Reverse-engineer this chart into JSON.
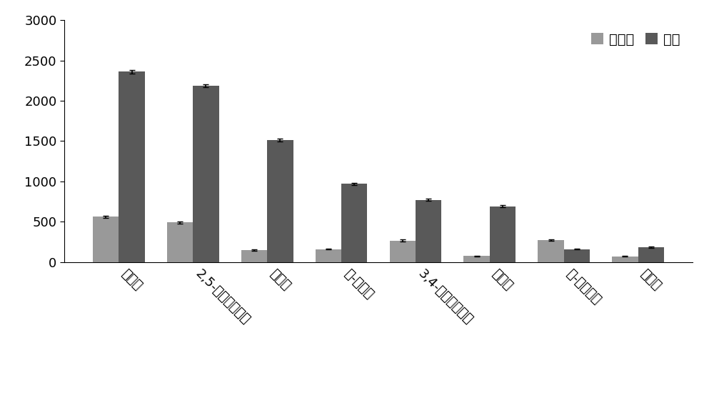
{
  "categories": [
    "隔马酸",
    "2,5-二羟基苯甲酸",
    "芥子酸",
    "反-阿魏酸",
    "3,4-二羟基苯甲酸",
    "咋啊酸",
    "反-对香豆酸",
    "香草酸"
  ],
  "values_no_ammonium": [
    560,
    490,
    150,
    160,
    265,
    75,
    270,
    70
  ],
  "values_ammonium": [
    2360,
    2190,
    1510,
    970,
    770,
    690,
    160,
    180
  ],
  "error_no_ammonium": [
    10,
    15,
    8,
    8,
    12,
    5,
    10,
    5
  ],
  "error_ammonium": [
    20,
    18,
    18,
    12,
    12,
    12,
    8,
    8
  ],
  "color_no_ammonium": "#999999",
  "color_ammonium": "#595959",
  "legend_no_ammonium": "不加铵",
  "legend_ammonium": "加铵",
  "ylim": [
    0,
    3000
  ],
  "yticks": [
    0,
    500,
    1000,
    1500,
    2000,
    2500,
    3000
  ],
  "bar_width": 0.35,
  "background_color": "#ffffff",
  "tick_fontsize": 13,
  "legend_fontsize": 14,
  "xlabel_rotation": -45,
  "xlabel_fontsize": 13
}
